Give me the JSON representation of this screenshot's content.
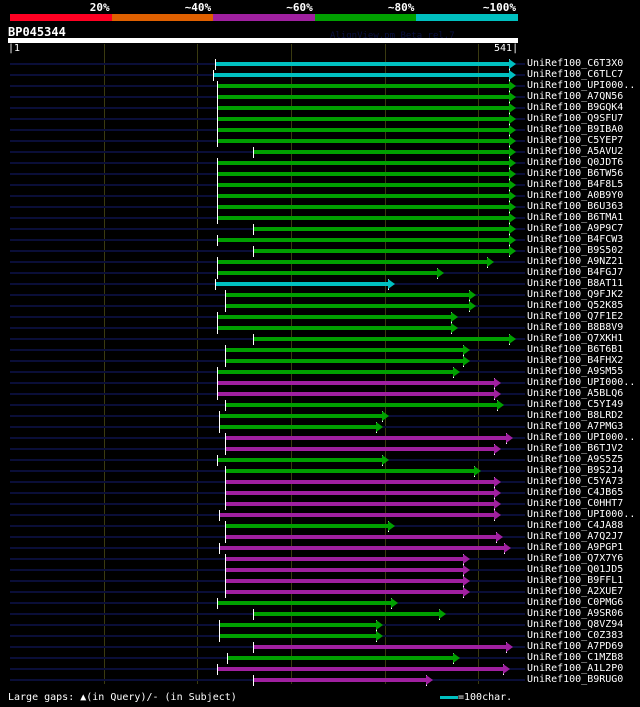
{
  "scale": {
    "labels": [
      "20%",
      "~40%",
      "~60%",
      "~80%",
      "~100%"
    ],
    "colors": [
      "#ff0022",
      "#e06000",
      "#a020a0",
      "#00a000",
      "#00c0c0"
    ]
  },
  "query": {
    "name": "BP045344",
    "length": 541,
    "start_label": "1",
    "end_label": "541",
    "watermark": "AlignView.pm Beta rel.7"
  },
  "hits": [
    [
      "UniRef100_C6T3X0",
      218,
      536,
      4
    ],
    [
      "UniRef100_C6TLC7",
      216,
      536,
      4
    ],
    [
      "UniRef100_UPI000..",
      220,
      536,
      3
    ],
    [
      "UniRef100_A7QN56",
      220,
      536,
      3
    ],
    [
      "UniRef100_B9GQK4",
      220,
      536,
      3
    ],
    [
      "UniRef100_Q9SFU7",
      220,
      536,
      3
    ],
    [
      "UniRef100_B9IBA0",
      220,
      536,
      3
    ],
    [
      "UniRef100_C5YEP7",
      220,
      536,
      3
    ],
    [
      "UniRef100_A5AVU2",
      259,
      536,
      3
    ],
    [
      "UniRef100_Q0JDT6",
      220,
      536,
      3
    ],
    [
      "UniRef100_B6TW56",
      220,
      536,
      3
    ],
    [
      "UniRef100_B4F8L5",
      220,
      536,
      3
    ],
    [
      "UniRef100_A0B9Y0",
      220,
      536,
      3
    ],
    [
      "UniRef100_B6U363",
      220,
      536,
      3
    ],
    [
      "UniRef100_B6TMA1",
      220,
      536,
      3
    ],
    [
      "UniRef100_A9P9C7",
      259,
      536,
      3
    ],
    [
      "UniRef100_B4FCW3",
      220,
      536,
      3
    ],
    [
      "UniRef100_B9S502",
      259,
      536,
      3
    ],
    [
      "UniRef100_A9NZ21",
      220,
      512,
      3
    ],
    [
      "UniRef100_B4FGJ7",
      220,
      459,
      3
    ],
    [
      "UniRef100_B8AT11",
      218,
      407,
      4
    ],
    [
      "UniRef100_Q9FJK2",
      229,
      493,
      3
    ],
    [
      "UniRef100_Q52K85",
      229,
      493,
      3
    ],
    [
      "UniRef100_Q7F1E2",
      220,
      474,
      3
    ],
    [
      "UniRef100_B8B8V9",
      220,
      474,
      3
    ],
    [
      "UniRef100_Q7XKH1",
      259,
      536,
      3
    ],
    [
      "UniRef100_B6T6B1",
      229,
      487,
      3
    ],
    [
      "UniRef100_B4FHX2",
      229,
      487,
      3
    ],
    [
      "UniRef100_A9SM55",
      220,
      476,
      3
    ],
    [
      "UniRef100_UPI000..",
      220,
      520,
      2
    ],
    [
      "UniRef100_A5BLQ6",
      220,
      520,
      2
    ],
    [
      "UniRef100_C5YI49",
      229,
      523,
      3
    ],
    [
      "UniRef100_B8LRD2",
      223,
      400,
      3
    ],
    [
      "UniRef100_A7PMG3",
      223,
      394,
      3
    ],
    [
      "UniRef100_UPI000..",
      229,
      532,
      2
    ],
    [
      "UniRef100_B6TJV2",
      229,
      520,
      2
    ],
    [
      "UniRef100_A9S5Z5",
      220,
      400,
      3
    ],
    [
      "UniRef100_B9S2J4",
      229,
      498,
      3
    ],
    [
      "UniRef100_C5YA73",
      229,
      520,
      2
    ],
    [
      "UniRef100_C4JB65",
      229,
      520,
      2
    ],
    [
      "UniRef100_C0HHT7",
      229,
      520,
      2
    ],
    [
      "UniRef100_UPI000..",
      223,
      520,
      2
    ],
    [
      "UniRef100_C4JA88",
      229,
      407,
      3
    ],
    [
      "UniRef100_A7Q2J7",
      229,
      522,
      2
    ],
    [
      "UniRef100_A9PGP1",
      223,
      530,
      2
    ],
    [
      "UniRef100_Q7X7Y6",
      229,
      487,
      2
    ],
    [
      "UniRef100_Q01JD5",
      229,
      487,
      2
    ],
    [
      "UniRef100_B9FFL1",
      229,
      487,
      2
    ],
    [
      "UniRef100_A2XUE7",
      229,
      487,
      2
    ],
    [
      "UniRef100_C0PMG6",
      220,
      410,
      3
    ],
    [
      "UniRef100_A9SR06",
      259,
      461,
      3
    ],
    [
      "UniRef100_Q8VZ94",
      223,
      394,
      3
    ],
    [
      "UniRef100_C0Z383",
      223,
      394,
      3
    ],
    [
      "UniRef100_A7PD69",
      259,
      532,
      2
    ],
    [
      "UniRef100_C1MZB8",
      231,
      476,
      3
    ],
    [
      "UniRef100_A1L2P0",
      220,
      529,
      2
    ],
    [
      "UniRef100_B9RUG0",
      259,
      447,
      2
    ]
  ],
  "footer": {
    "gaps_text": "Large gaps: ▲(in Query)/- (in Subject)",
    "legend_text": "=100char."
  }
}
